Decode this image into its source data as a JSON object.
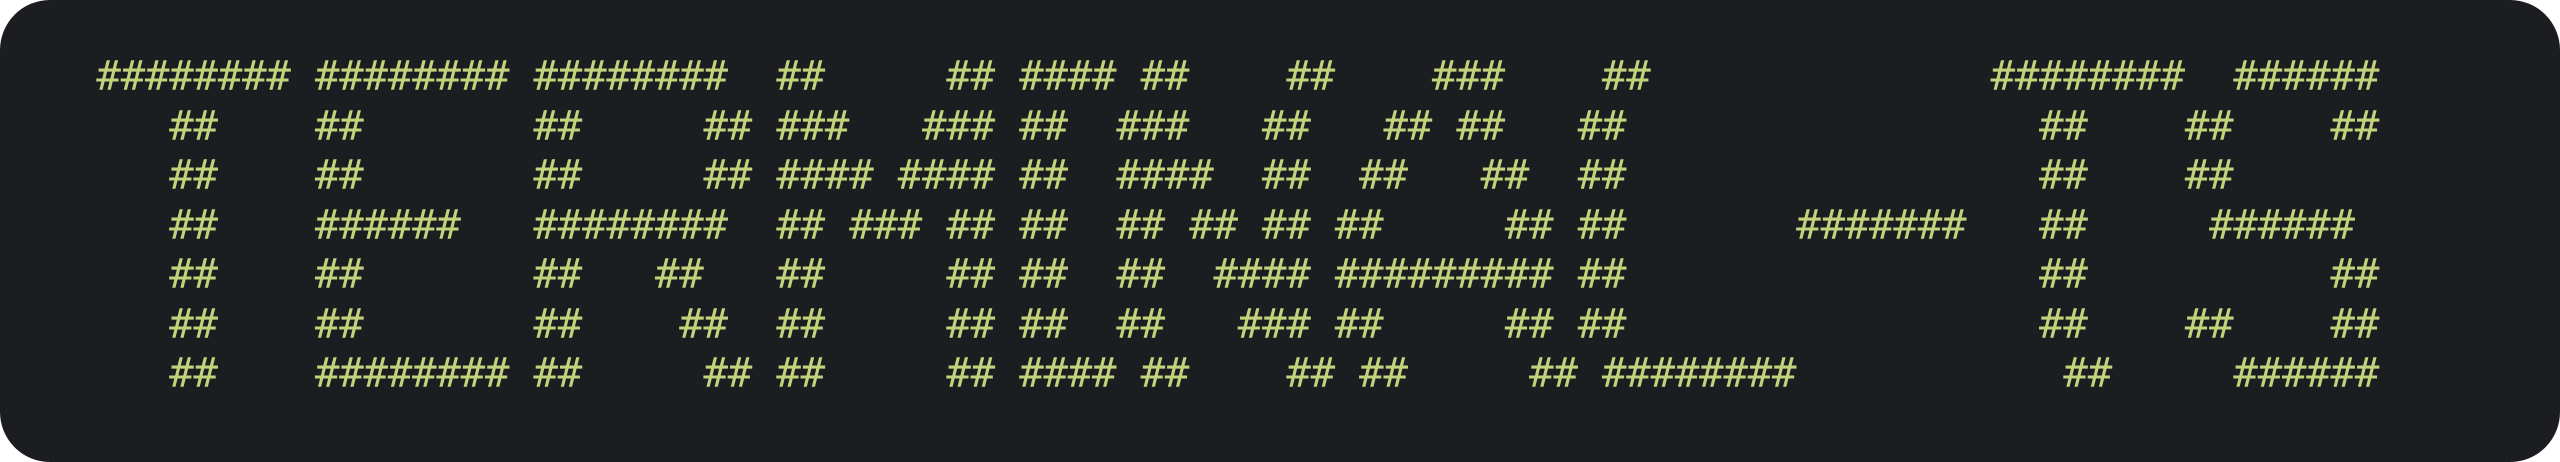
{
  "banner": {
    "text_color": "#c3d37c",
    "background_color": "#1c1d20",
    "art": " ######## ######## ########  ##     ## #### ##    ##    ###    ##              ########  ######\n    ##    ##       ##     ## ###   ### ##  ###   ##   ## ##   ##                 ##    ##    ##\n    ##    ##       ##     ## #### #### ##  ####  ##  ##   ##  ##                 ##    ##\n    ##    ######   ########  ## ### ## ##  ## ## ## ##     ## ##       #######   ##     ######\n    ##    ##       ##   ##   ##     ## ##  ##  #### ######### ##                 ##          ##\n    ##    ##       ##    ##  ##     ## ##  ##   ### ##     ## ##                 ##    ##    ##\n    ##    ######## ##     ## ##     ## #### ##    ## ##     ## ########           ##     ######"
  }
}
